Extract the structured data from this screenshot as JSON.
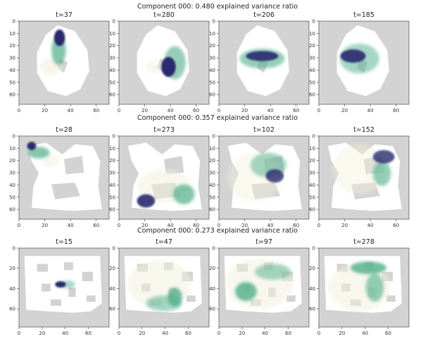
{
  "colors": {
    "background": "#d3d3d3",
    "maze": "#ffffff",
    "cmap_low": "#f1f1dc",
    "cmap_mid": "#4faf8a",
    "cmap_high": "#2b2a6e"
  },
  "chart_data": [
    {
      "type": "heatmap",
      "title": "Component 000: 0.480 explained variance ratio",
      "panels": [
        {
          "title": "t=37",
          "xticks": [
            0,
            20,
            40,
            60
          ],
          "yticks": [
            0,
            10,
            20,
            30,
            40,
            50,
            60
          ],
          "xlim": [
            0,
            70
          ],
          "ylim": [
            68,
            0
          ]
        },
        {
          "title": "t=280",
          "xticks": [
            0,
            20,
            40,
            60
          ],
          "yticks": [
            0,
            10,
            20,
            30,
            40,
            50,
            60
          ],
          "xlim": [
            0,
            70
          ],
          "ylim": [
            68,
            0
          ]
        },
        {
          "title": "t=206",
          "xticks": [
            0,
            20,
            40,
            60
          ],
          "yticks": [
            0,
            10,
            20,
            30,
            40,
            50,
            60
          ],
          "xlim": [
            0,
            70
          ],
          "ylim": [
            68,
            0
          ]
        },
        {
          "title": "t=185",
          "xticks": [
            0,
            20,
            40,
            60
          ],
          "yticks": [
            0,
            10,
            20,
            30,
            40,
            50,
            60
          ],
          "xlim": [
            0,
            70
          ],
          "ylim": [
            68,
            0
          ]
        }
      ]
    },
    {
      "type": "heatmap",
      "title": "Component 000: 0.357 explained variance ratio",
      "panels": [
        {
          "title": "t=28",
          "xticks": [
            0,
            20,
            40,
            60
          ],
          "yticks": [
            0,
            10,
            20,
            30,
            40,
            50,
            60
          ],
          "xlim": [
            0,
            70
          ],
          "ylim": [
            68,
            0
          ]
        },
        {
          "title": "t=273",
          "xticks": [
            0,
            20,
            40,
            60
          ],
          "yticks": [
            0,
            10,
            20,
            30,
            40,
            50,
            60
          ],
          "xlim": [
            0,
            70
          ],
          "ylim": [
            68,
            0
          ]
        },
        {
          "title": "t=102",
          "xticks": [
            0,
            20,
            40,
            60
          ],
          "yticks": [
            0,
            10,
            20,
            30,
            40,
            50,
            60
          ],
          "xlim": [
            0,
            70
          ],
          "ylim": [
            68,
            0
          ]
        },
        {
          "title": "t=152",
          "xticks": [
            0,
            20,
            40,
            60
          ],
          "yticks": [
            0,
            10,
            20,
            30,
            40,
            50,
            60
          ],
          "xlim": [
            0,
            70
          ],
          "ylim": [
            68,
            0
          ]
        }
      ]
    },
    {
      "type": "heatmap",
      "title": "Component 000: 0.273 explained variance ratio",
      "panels": [
        {
          "title": "t=15",
          "xticks": [
            0,
            20,
            40,
            60
          ],
          "yticks": [
            0,
            20,
            40,
            60
          ],
          "xlim": [
            0,
            78
          ],
          "ylim": [
            78,
            0
          ]
        },
        {
          "title": "t=47",
          "xticks": [
            0,
            20,
            40,
            60
          ],
          "yticks": [
            0,
            20,
            40,
            60
          ],
          "xlim": [
            0,
            78
          ],
          "ylim": [
            78,
            0
          ]
        },
        {
          "title": "t=97",
          "xticks": [
            0,
            20,
            40,
            60
          ],
          "yticks": [
            0,
            20,
            40,
            60
          ],
          "xlim": [
            0,
            78
          ],
          "ylim": [
            78,
            0
          ]
        },
        {
          "title": "t=278",
          "xticks": [
            0,
            20,
            40,
            60
          ],
          "yticks": [
            0,
            20,
            40,
            60
          ],
          "xlim": [
            0,
            78
          ],
          "ylim": [
            78,
            0
          ]
        }
      ]
    }
  ]
}
